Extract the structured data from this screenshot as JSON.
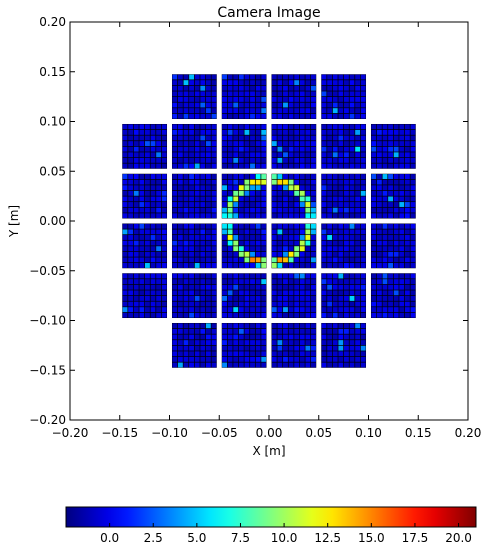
{
  "chart_data": {
    "type": "heatmap",
    "title": "Camera Image",
    "xlabel": "X [m]",
    "ylabel": "Y [m]",
    "xlim": [
      -0.2,
      0.2
    ],
    "ylim": [
      -0.2,
      0.2
    ],
    "x_ticks": [
      "−0.20",
      "−0.15",
      "−0.10",
      "−0.05",
      "0.00",
      "0.05",
      "0.10",
      "0.15",
      "0.20"
    ],
    "y_ticks": [
      "−0.20",
      "−0.15",
      "−0.10",
      "−0.05",
      "0.00",
      "0.05",
      "0.10",
      "0.15",
      "0.20"
    ],
    "grid": false,
    "colormap": "jet",
    "colorbar": {
      "orientation": "horizontal",
      "range": [
        -2.5,
        21.0
      ],
      "ticks": [
        "0.0",
        "2.5",
        "5.0",
        "7.5",
        "10.0",
        "12.5",
        "15.0",
        "17.5",
        "20.0"
      ],
      "tick_values": [
        0.0,
        2.5,
        5.0,
        7.5,
        10.0,
        12.5,
        15.0,
        17.5,
        20.0
      ]
    },
    "modules": {
      "pixels_per_side": 8,
      "module_size_m": 0.045,
      "rows": [
        {
          "y_center": 0.125,
          "x_centers": [
            -0.075,
            -0.025,
            0.025,
            0.075
          ]
        },
        {
          "y_center": 0.075,
          "x_centers": [
            -0.125,
            -0.075,
            -0.025,
            0.025,
            0.075,
            0.125
          ]
        },
        {
          "y_center": 0.025,
          "x_centers": [
            -0.125,
            -0.075,
            -0.025,
            0.025,
            0.075,
            0.125
          ]
        },
        {
          "y_center": -0.025,
          "x_centers": [
            -0.125,
            -0.075,
            -0.025,
            0.025,
            0.075,
            0.125
          ]
        },
        {
          "y_center": -0.075,
          "x_centers": [
            -0.125,
            -0.075,
            -0.025,
            0.025,
            0.075,
            0.125
          ]
        },
        {
          "y_center": -0.125,
          "x_centers": [
            -0.075,
            -0.025,
            0.025,
            0.075
          ]
        }
      ]
    },
    "ring_signal": {
      "shape": "ring",
      "center": [
        0.0,
        0.0
      ],
      "radius_m": 0.042,
      "peak_value": 20.0,
      "background_value": -1.5
    }
  }
}
